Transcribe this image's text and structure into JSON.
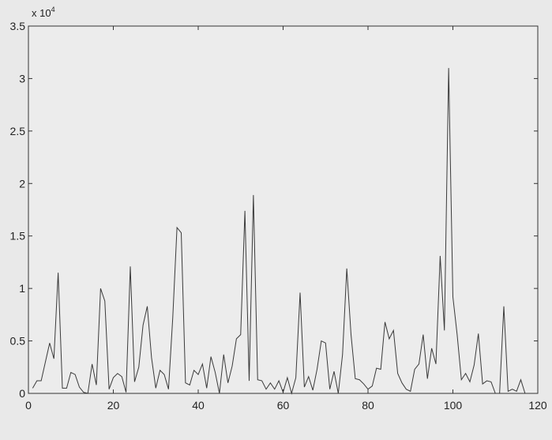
{
  "chart_data": {
    "type": "line",
    "title": "",
    "xlabel": "",
    "ylabel": "",
    "xlim": [
      0,
      120
    ],
    "ylim": [
      0,
      35000
    ],
    "x_ticks": [
      "0",
      "20",
      "40",
      "60",
      "80",
      "100",
      "120"
    ],
    "y_ticks": [
      "0",
      "0.5",
      "1",
      "1.5",
      "2",
      "2.5",
      "3",
      "3.5"
    ],
    "y_multiplier_base": "x 10",
    "y_multiplier_exponent": "4",
    "grid": false,
    "legend": "none",
    "line_color": "#3a3a3a",
    "series": [
      {
        "x": [
          1,
          2,
          3,
          4,
          5,
          6,
          7,
          8,
          9,
          10,
          11,
          12,
          13,
          14,
          15,
          16,
          17,
          18,
          19,
          20,
          21,
          22,
          23,
          24,
          25,
          26,
          27,
          28,
          29,
          30,
          31,
          32,
          33,
          34,
          35,
          36,
          37,
          38,
          39,
          40,
          41,
          42,
          43,
          44,
          45,
          46,
          47,
          48,
          49,
          50,
          51,
          52,
          53,
          54,
          55,
          56,
          57,
          58,
          59,
          60,
          61,
          62,
          63,
          64,
          65,
          66,
          67,
          68,
          69,
          70,
          71,
          72,
          73,
          74,
          75,
          76,
          77,
          78,
          79,
          80,
          81,
          82,
          83,
          84,
          85,
          86,
          87,
          88,
          89,
          90,
          91,
          92,
          93,
          94,
          95,
          96,
          97,
          98,
          99,
          100,
          101,
          102,
          103,
          104,
          105,
          106,
          107,
          108,
          109,
          110,
          111,
          112,
          113,
          114,
          115,
          116,
          117,
          118,
          119,
          120
        ],
        "values": [
          500,
          1200,
          1200,
          3000,
          4800,
          3300,
          11500,
          500,
          500,
          2000,
          1800,
          600,
          100,
          0,
          2800,
          800,
          10000,
          8800,
          400,
          1500,
          1900,
          1600,
          100,
          12100,
          1100,
          2500,
          6500,
          8300,
          3400,
          500,
          2200,
          1800,
          400,
          7200,
          15800,
          15300,
          1000,
          800,
          2200,
          1800,
          2800,
          500,
          3500,
          2000,
          0,
          3700,
          1000,
          2600,
          5200,
          5600,
          17400,
          1200,
          18900,
          1300,
          1200,
          400,
          1000,
          400,
          1200,
          100,
          1500,
          0,
          1500,
          9600,
          600,
          1600,
          300,
          2300,
          5000,
          4800,
          400,
          2100,
          0,
          3700,
          11900,
          5600,
          1400,
          1300,
          900,
          400,
          700,
          2400,
          2300,
          6800,
          5200,
          6000,
          1900,
          1000,
          400,
          200,
          2300,
          2800,
          5600,
          1400,
          4300,
          2800,
          13100,
          6000,
          31000,
          9200,
          5600,
          1300,
          1900,
          1100,
          2700,
          5700,
          900,
          1200,
          1100,
          0,
          0,
          8300,
          200,
          400,
          200,
          1300,
          0,
          0,
          0,
          0
        ]
      }
    ]
  }
}
